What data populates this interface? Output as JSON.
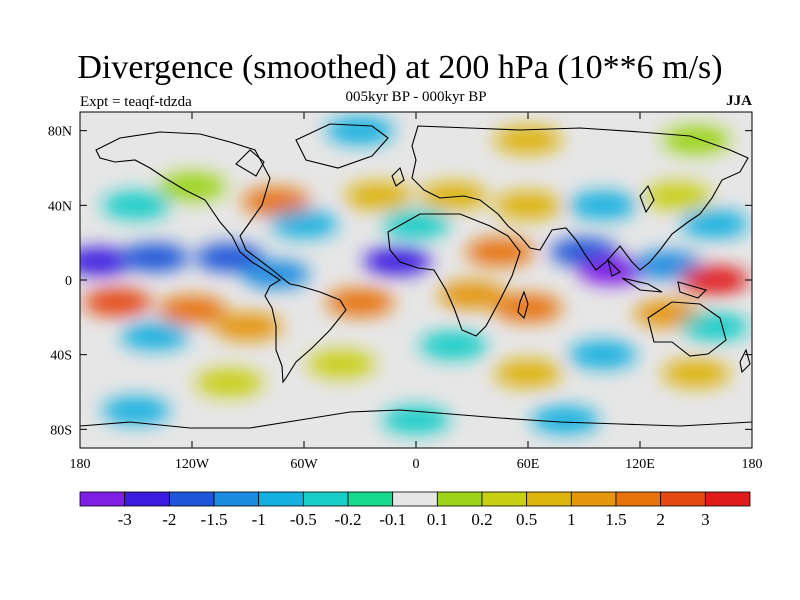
{
  "title": "Divergence (smoothed) at 200 hPa (10**6 m/s)",
  "subtitle": "005kyr BP - 000kyr BP",
  "experiment": "Expt = teaqf-tdzda",
  "season": "JJA",
  "map": {
    "projection": "cylindrical-equidistant",
    "lon_range": [
      -180,
      180
    ],
    "lat_range": [
      -90,
      90
    ],
    "lon_ticks": [
      {
        "value": -180,
        "label": "180"
      },
      {
        "value": -120,
        "label": "120W"
      },
      {
        "value": -60,
        "label": "60W"
      },
      {
        "value": 0,
        "label": "0"
      },
      {
        "value": 60,
        "label": "60E"
      },
      {
        "value": 120,
        "label": "120E"
      },
      {
        "value": 180,
        "label": "180"
      }
    ],
    "lat_ticks": [
      {
        "value": 80,
        "label": "80N"
      },
      {
        "value": 40,
        "label": "40N"
      },
      {
        "value": 0,
        "label": "0"
      },
      {
        "value": -40,
        "label": "40S"
      },
      {
        "value": -80,
        "label": "80S"
      }
    ],
    "colorbar": {
      "colors": [
        "#7e1fe6",
        "#3c1de0",
        "#1f55d8",
        "#1a8be0",
        "#13b1e0",
        "#19cdc8",
        "#16d98e",
        "#e6e6e6",
        "#9bd418",
        "#c9cf13",
        "#ddb40d",
        "#e4960c",
        "#e7730c",
        "#e54a12",
        "#e01b1b"
      ],
      "labels": [
        "-3",
        "-2",
        "-1.5",
        "-1",
        "-0.5",
        "-0.2",
        "-0.1",
        "0.1",
        "0.2",
        "0.5",
        "1",
        "1.5",
        "2",
        "3"
      ]
    },
    "fields": [
      {
        "lon": -170,
        "lat": 10,
        "class": 1
      },
      {
        "lon": -140,
        "lat": 12,
        "class": 2
      },
      {
        "lon": -100,
        "lat": 12,
        "class": 2
      },
      {
        "lon": -75,
        "lat": 3,
        "class": 3
      },
      {
        "lon": -10,
        "lat": 10,
        "class": 1
      },
      {
        "lon": 90,
        "lat": 15,
        "class": 2
      },
      {
        "lon": 105,
        "lat": 5,
        "class": 0
      },
      {
        "lon": 135,
        "lat": 8,
        "class": 3
      },
      {
        "lon": -160,
        "lat": -12,
        "class": 13
      },
      {
        "lon": -120,
        "lat": -16,
        "class": 12
      },
      {
        "lon": -90,
        "lat": -25,
        "class": 11
      },
      {
        "lon": -30,
        "lat": -12,
        "class": 12
      },
      {
        "lon": 30,
        "lat": -8,
        "class": 11
      },
      {
        "lon": 60,
        "lat": -15,
        "class": 12
      },
      {
        "lon": 45,
        "lat": 15,
        "class": 12
      },
      {
        "lon": 160,
        "lat": 0,
        "class": 14
      },
      {
        "lon": 135,
        "lat": -18,
        "class": 11
      },
      {
        "lon": -75,
        "lat": 42,
        "class": 12
      },
      {
        "lon": -20,
        "lat": 45,
        "class": 10
      },
      {
        "lon": 20,
        "lat": 45,
        "class": 10
      },
      {
        "lon": 60,
        "lat": 40,
        "class": 10
      },
      {
        "lon": -120,
        "lat": 50,
        "class": 8
      },
      {
        "lon": 140,
        "lat": 45,
        "class": 9
      },
      {
        "lon": -60,
        "lat": 30,
        "class": 4
      },
      {
        "lon": 0,
        "lat": 30,
        "class": 5
      },
      {
        "lon": 100,
        "lat": 40,
        "class": 4
      },
      {
        "lon": -150,
        "lat": 40,
        "class": 5
      },
      {
        "lon": 160,
        "lat": 30,
        "class": 4
      },
      {
        "lon": -140,
        "lat": -30,
        "class": 4
      },
      {
        "lon": 20,
        "lat": -35,
        "class": 5
      },
      {
        "lon": 100,
        "lat": -40,
        "class": 4
      },
      {
        "lon": 160,
        "lat": -25,
        "class": 5
      },
      {
        "lon": -40,
        "lat": -45,
        "class": 9
      },
      {
        "lon": 60,
        "lat": -50,
        "class": 10
      },
      {
        "lon": 150,
        "lat": -50,
        "class": 10
      },
      {
        "lon": -100,
        "lat": -55,
        "class": 9
      },
      {
        "lon": -150,
        "lat": -70,
        "class": 4
      },
      {
        "lon": 0,
        "lat": -75,
        "class": 5
      },
      {
        "lon": 80,
        "lat": -75,
        "class": 4
      },
      {
        "lon": -30,
        "lat": 80,
        "class": 4
      },
      {
        "lon": 60,
        "lat": 75,
        "class": 10
      },
      {
        "lon": 150,
        "lat": 75,
        "class": 8
      }
    ]
  }
}
